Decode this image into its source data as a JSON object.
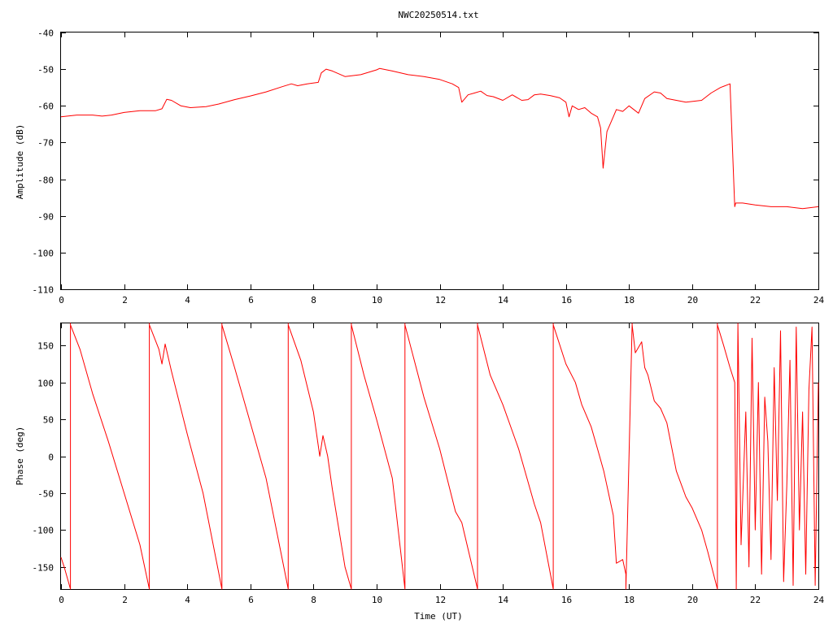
{
  "title": "NWC20250514.txt",
  "colors": {
    "trace": "#ff0000",
    "axes": "#000000",
    "background": "#ffffff"
  },
  "chart_data": [
    {
      "type": "line",
      "ylabel": "Amplitude (dB)",
      "xlabel": "",
      "xlim": [
        0,
        24
      ],
      "ylim": [
        -110,
        -40
      ],
      "xticks": [
        "0",
        "2",
        "4",
        "6",
        "8",
        "10",
        "12",
        "14",
        "16",
        "18",
        "20",
        "22",
        "24"
      ],
      "yticks": [
        "-40",
        "-50",
        "-60",
        "-70",
        "-80",
        "-90",
        "-100",
        "-110"
      ],
      "grid": false,
      "series": [
        {
          "x": [
            0,
            0.5,
            1,
            1.3,
            1.6,
            2,
            2.5,
            3,
            3.2,
            3.35,
            3.5,
            3.8,
            4.1,
            4.6,
            5,
            5.5,
            6,
            6.5,
            7,
            7.3,
            7.5,
            7.8,
            8.15,
            8.25,
            8.4,
            8.6,
            9,
            9.5,
            10,
            10.1,
            10.5,
            11,
            11.5,
            12,
            12.4,
            12.6,
            12.7,
            12.9,
            13.1,
            13.3,
            13.5,
            13.7,
            14,
            14.3,
            14.6,
            14.8,
            15,
            15.2,
            15.5,
            15.8,
            16,
            16.1,
            16.2,
            16.4,
            16.6,
            16.8,
            17,
            17.1,
            17.18,
            17.3,
            17.5,
            17.6,
            17.8,
            18,
            18.3,
            18.5,
            18.8,
            19,
            19.2,
            19.5,
            19.8,
            20,
            20.3,
            20.6,
            20.9,
            21.2,
            21.35,
            21.38,
            21.6,
            22,
            22.5,
            23,
            23.5,
            24
          ],
          "y": [
            -63,
            -62.5,
            -62.5,
            -62.8,
            -62.5,
            -61.8,
            -61.3,
            -61.3,
            -60.8,
            -58.2,
            -58.5,
            -60,
            -60.5,
            -60.2,
            -59.5,
            -58.3,
            -57.3,
            -56.2,
            -54.8,
            -54,
            -54.5,
            -54,
            -53.6,
            -51,
            -50,
            -50.5,
            -52,
            -51.5,
            -50.2,
            -49.8,
            -50.5,
            -51.5,
            -52,
            -52.8,
            -54,
            -55,
            -59,
            -57,
            -56.5,
            -56,
            -57.2,
            -57.5,
            -58.5,
            -57,
            -58.5,
            -58.3,
            -57,
            -56.8,
            -57.2,
            -57.8,
            -59,
            -63,
            -60,
            -61,
            -60.5,
            -62,
            -63,
            -66,
            -77,
            -67,
            -63,
            -61,
            -61.5,
            -60,
            -62,
            -58,
            -56.2,
            -56.5,
            -58,
            -58.5,
            -59,
            -58.8,
            -58.5,
            -56.5,
            -55,
            -54,
            -87.5,
            -86.5,
            -86.5,
            -87,
            -87.5,
            -87.5,
            -88,
            -87.5
          ]
        }
      ]
    },
    {
      "type": "line",
      "ylabel": "Phase (deg)",
      "xlabel": "Time (UT)",
      "xlim": [
        0,
        24
      ],
      "ylim": [
        -180,
        180
      ],
      "xticks": [
        "0",
        "2",
        "4",
        "6",
        "8",
        "10",
        "12",
        "14",
        "16",
        "18",
        "20",
        "22",
        "24"
      ],
      "yticks": [
        "150",
        "100",
        "50",
        "0",
        "-50",
        "-100",
        "-150"
      ],
      "grid": false,
      "series": [
        {
          "x": [
            0,
            0.1,
            0.3,
            0.3,
            0.3,
            0.6,
            1,
            1.5,
            2,
            2.5,
            2.8,
            2.8,
            2.8,
            3.1,
            3.2,
            3.3,
            3.5,
            4,
            4.5,
            5.1,
            5.1,
            5.1,
            5.5,
            6,
            6.5,
            7.2,
            7.2,
            7.2,
            7.6,
            8,
            8.2,
            8.3,
            8.45,
            8.6,
            9,
            9.2,
            9.2,
            9.2,
            9.6,
            10,
            10.5,
            10.9,
            10.9,
            10.9,
            11.5,
            12,
            12.5,
            12.7,
            13.2,
            13.2,
            13.2,
            13.6,
            14,
            14.5,
            15,
            15.2,
            15.6,
            15.6,
            15.6,
            16,
            16.3,
            16.5,
            16.8,
            17,
            17.2,
            17.3,
            17.4,
            17.5,
            17.6,
            17.8,
            17.9,
            17.9,
            18.1,
            18.1,
            18.2,
            18.4,
            18.5,
            18.6,
            18.8,
            19,
            19.2,
            19.5,
            19.8,
            20,
            20.3,
            20.5,
            20.8,
            20.8,
            20.8,
            21,
            21.2,
            21.35,
            21.4,
            21.45,
            21.55,
            21.7,
            21.8,
            21.9,
            22,
            22.1,
            22.2,
            22.3,
            22.4,
            22.5,
            22.6,
            22.7,
            22.8,
            22.9,
            23,
            23.1,
            23.2,
            23.3,
            23.4,
            23.5,
            23.6,
            23.7,
            23.8,
            23.9,
            24
          ],
          "y": [
            -137,
            -150,
            -180,
            180,
            178,
            145,
            85,
            20,
            -50,
            -120,
            -180,
            180,
            178,
            145,
            125,
            152,
            115,
            30,
            -50,
            -180,
            180,
            178,
            120,
            45,
            -30,
            -180,
            180,
            178,
            130,
            60,
            0,
            28,
            0,
            -45,
            -150,
            -180,
            180,
            178,
            110,
            50,
            -30,
            -180,
            180,
            178,
            80,
            10,
            -75,
            -90,
            -180,
            180,
            178,
            110,
            70,
            10,
            -65,
            -90,
            -180,
            180,
            178,
            125,
            100,
            70,
            40,
            10,
            -20,
            -40,
            -60,
            -80,
            -145,
            -140,
            -160,
            -180,
            180,
            178,
            140,
            155,
            120,
            110,
            75,
            65,
            45,
            -20,
            -55,
            -70,
            -100,
            -130,
            -180,
            180,
            178,
            150,
            120,
            100,
            -180,
            180,
            -120,
            60,
            -150,
            160,
            -100,
            100,
            -160,
            80,
            20,
            -140,
            120,
            -60,
            170,
            -170,
            -40,
            130,
            -175,
            175,
            -100,
            60,
            -160,
            90,
            175,
            -175,
            100
          ]
        }
      ]
    }
  ]
}
